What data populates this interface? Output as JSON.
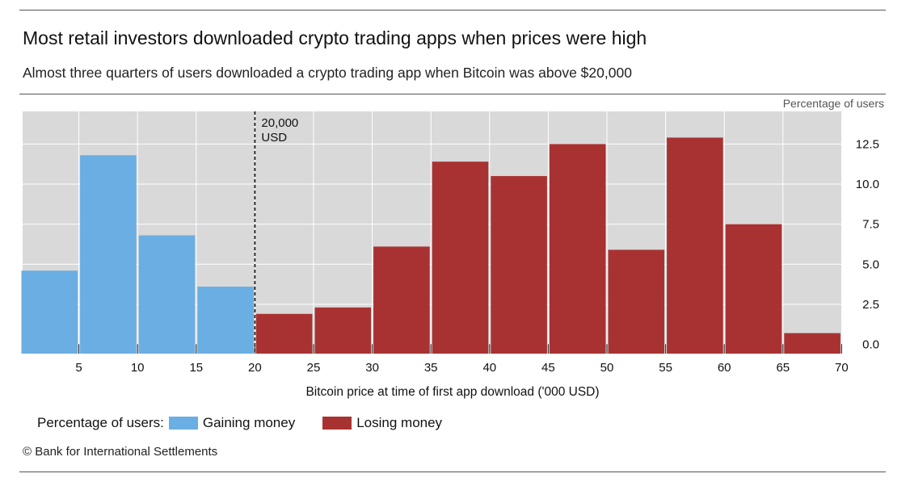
{
  "header": {
    "title": "Most retail investors downloaded crypto trading apps when prices were high",
    "subtitle": "Almost three quarters of users downloaded a crypto trading app when Bitcoin was above $20,000"
  },
  "legend": {
    "prefix": "Percentage of users:",
    "items": [
      {
        "label": "Gaining money",
        "color": "#6aaee3"
      },
      {
        "label": "Losing money",
        "color": "#a83232"
      }
    ]
  },
  "source": "© Bank for International Settlements",
  "chart_data": {
    "type": "bar",
    "title": "Most retail investors downloaded crypto trading apps when prices were high",
    "subtitle": "Almost three quarters of users downloaded a crypto trading app when Bitcoin was above $20,000",
    "xlabel": "Bitcoin price at time of first app download ('000 USD)",
    "ylabel": "Percentage of users",
    "xlim": [
      0,
      70
    ],
    "ylim": [
      0,
      12.5
    ],
    "x_ticks": [
      5,
      10,
      15,
      20,
      25,
      30,
      35,
      40,
      45,
      50,
      55,
      60,
      65,
      70
    ],
    "y_ticks": [
      "0.0",
      "2.5",
      "5.0",
      "7.5",
      "10.0",
      "12.5"
    ],
    "y_axis_position": "right",
    "grid": true,
    "legend_placement": "bottom-left",
    "annotation": {
      "x": 20,
      "label_line1": "20,000",
      "label_line2": "USD"
    },
    "bin_width": 5,
    "series": [
      {
        "name": "Gaining money",
        "color": "#6aaee3",
        "bins": [
          [
            0,
            5
          ],
          [
            5,
            10
          ],
          [
            10,
            15
          ],
          [
            15,
            20
          ]
        ],
        "values": [
          4.6,
          11.8,
          6.8,
          3.6
        ]
      },
      {
        "name": "Losing money",
        "color": "#a83232",
        "bins": [
          [
            20,
            25
          ],
          [
            25,
            30
          ],
          [
            30,
            35
          ],
          [
            35,
            40
          ],
          [
            40,
            45
          ],
          [
            45,
            50
          ],
          [
            50,
            55
          ],
          [
            55,
            60
          ],
          [
            60,
            65
          ],
          [
            65,
            70
          ]
        ],
        "values": [
          1.9,
          2.3,
          6.1,
          11.4,
          10.5,
          12.5,
          5.9,
          12.9,
          7.5,
          0.7
        ]
      }
    ]
  }
}
